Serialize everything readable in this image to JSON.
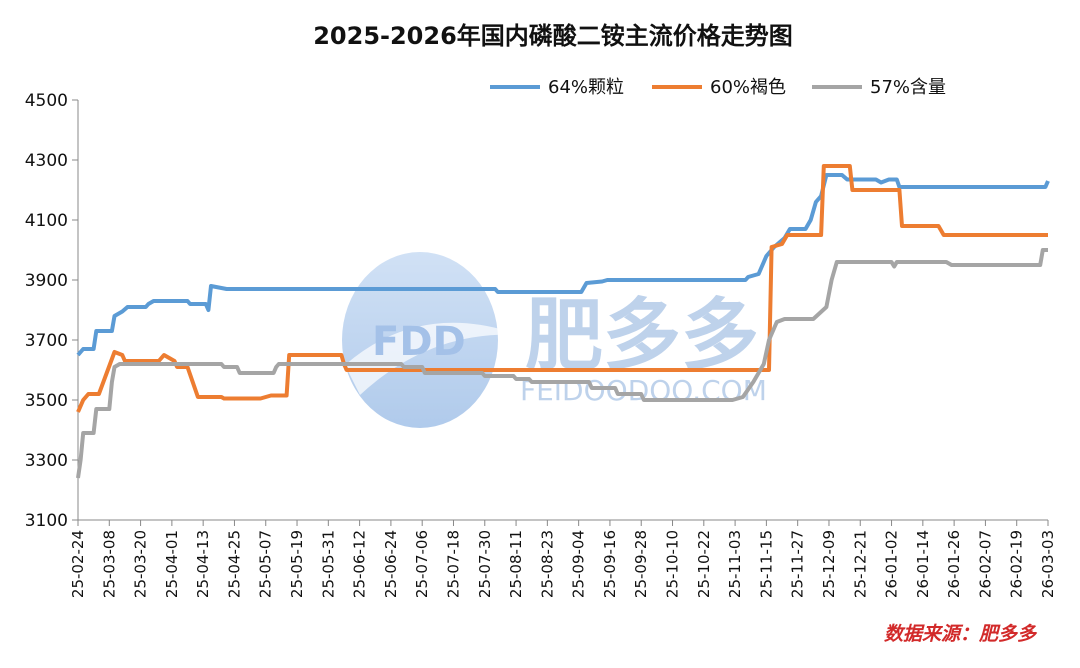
{
  "chart_data": {
    "type": "line",
    "title": "2025-2026年国内磷酸二铵主流价格走势图",
    "source": "数据来源：肥多多",
    "watermark": {
      "logo": "FDD",
      "name": "肥多多",
      "url": "FEIDOODOO.COM"
    },
    "ylim": [
      3100,
      4500
    ],
    "yticks": [
      3100,
      3300,
      3500,
      3700,
      3900,
      4100,
      4300,
      4500
    ],
    "grid": false,
    "legend_position": "top-right",
    "x_start": "2025-02-24",
    "x_end": "2026-03-03",
    "xtick_labels": [
      "25-02-24",
      "25-03-08",
      "25-03-20",
      "25-04-01",
      "25-04-13",
      "25-04-25",
      "25-05-07",
      "25-05-19",
      "25-05-31",
      "25-06-12",
      "25-06-24",
      "25-07-06",
      "25-07-18",
      "25-07-30",
      "25-08-11",
      "25-08-23",
      "25-09-04",
      "25-09-16",
      "25-09-28",
      "25-10-10",
      "25-10-22",
      "25-11-03",
      "25-11-15",
      "25-11-27",
      "25-12-09",
      "25-12-21",
      "26-01-02",
      "26-01-14",
      "26-01-26",
      "26-02-07",
      "26-02-19",
      "26-03-03"
    ],
    "series": [
      {
        "name": "64%颗粒",
        "color": "#5b9bd5",
        "points": [
          [
            "2025-02-24",
            3650
          ],
          [
            "2025-02-26",
            3670
          ],
          [
            "2025-03-02",
            3670
          ],
          [
            "2025-03-03",
            3730
          ],
          [
            "2025-03-09",
            3730
          ],
          [
            "2025-03-10",
            3780
          ],
          [
            "2025-03-13",
            3795
          ],
          [
            "2025-03-15",
            3810
          ],
          [
            "2025-03-22",
            3810
          ],
          [
            "2025-03-23",
            3820
          ],
          [
            "2025-03-25",
            3830
          ],
          [
            "2025-04-07",
            3830
          ],
          [
            "2025-04-08",
            3820
          ],
          [
            "2025-04-14",
            3820
          ],
          [
            "2025-04-15",
            3800
          ],
          [
            "2025-04-16",
            3880
          ],
          [
            "2025-04-22",
            3870
          ],
          [
            "2025-08-03",
            3870
          ],
          [
            "2025-08-04",
            3860
          ],
          [
            "2025-09-05",
            3860
          ],
          [
            "2025-09-07",
            3890
          ],
          [
            "2025-09-13",
            3895
          ],
          [
            "2025-09-15",
            3900
          ],
          [
            "2025-11-07",
            3900
          ],
          [
            "2025-11-08",
            3910
          ],
          [
            "2025-11-12",
            3920
          ],
          [
            "2025-11-15",
            3980
          ],
          [
            "2025-11-18",
            4010
          ],
          [
            "2025-11-22",
            4040
          ],
          [
            "2025-11-24",
            4070
          ],
          [
            "2025-11-30",
            4070
          ],
          [
            "2025-12-02",
            4100
          ],
          [
            "2025-12-04",
            4160
          ],
          [
            "2025-12-06",
            4180
          ],
          [
            "2025-12-08",
            4250
          ],
          [
            "2025-12-14",
            4250
          ],
          [
            "2025-12-16",
            4235
          ],
          [
            "2025-12-27",
            4235
          ],
          [
            "2025-12-29",
            4225
          ],
          [
            "2026-01-01",
            4235
          ],
          [
            "2026-01-04",
            4235
          ],
          [
            "2026-01-05",
            4210
          ],
          [
            "2026-03-02",
            4210
          ],
          [
            "2026-03-03",
            4230
          ]
        ]
      },
      {
        "name": "60%褐色",
        "color": "#ed7d31",
        "points": [
          [
            "2025-02-24",
            3460
          ],
          [
            "2025-02-26",
            3500
          ],
          [
            "2025-02-28",
            3520
          ],
          [
            "2025-03-04",
            3520
          ],
          [
            "2025-03-07",
            3590
          ],
          [
            "2025-03-10",
            3660
          ],
          [
            "2025-03-13",
            3650
          ],
          [
            "2025-03-14",
            3630
          ],
          [
            "2025-03-27",
            3630
          ],
          [
            "2025-03-29",
            3650
          ],
          [
            "2025-04-02",
            3630
          ],
          [
            "2025-04-03",
            3610
          ],
          [
            "2025-04-07",
            3610
          ],
          [
            "2025-04-09",
            3560
          ],
          [
            "2025-04-11",
            3510
          ],
          [
            "2025-04-20",
            3510
          ],
          [
            "2025-04-21",
            3505
          ],
          [
            "2025-05-05",
            3505
          ],
          [
            "2025-05-09",
            3515
          ],
          [
            "2025-05-15",
            3515
          ],
          [
            "2025-05-16",
            3650
          ],
          [
            "2025-06-05",
            3650
          ],
          [
            "2025-06-06",
            3620
          ],
          [
            "2025-06-07",
            3600
          ],
          [
            "2025-11-16",
            3600
          ],
          [
            "2025-11-17",
            4010
          ],
          [
            "2025-11-21",
            4020
          ],
          [
            "2025-11-23",
            4050
          ],
          [
            "2025-12-06",
            4050
          ],
          [
            "2025-12-07",
            4280
          ],
          [
            "2025-12-17",
            4280
          ],
          [
            "2025-12-18",
            4200
          ],
          [
            "2026-01-05",
            4200
          ],
          [
            "2026-01-06",
            4080
          ],
          [
            "2026-01-20",
            4080
          ],
          [
            "2026-01-22",
            4050
          ],
          [
            "2026-03-03",
            4050
          ]
        ]
      },
      {
        "name": "57%含量",
        "color": "#a5a5a5",
        "points": [
          [
            "2025-02-24",
            3240
          ],
          [
            "2025-02-25",
            3300
          ],
          [
            "2025-02-26",
            3390
          ],
          [
            "2025-03-02",
            3390
          ],
          [
            "2025-03-03",
            3470
          ],
          [
            "2025-03-08",
            3470
          ],
          [
            "2025-03-09",
            3560
          ],
          [
            "2025-03-10",
            3610
          ],
          [
            "2025-03-12",
            3620
          ],
          [
            "2025-04-20",
            3620
          ],
          [
            "2025-04-21",
            3610
          ],
          [
            "2025-04-26",
            3610
          ],
          [
            "2025-04-27",
            3590
          ],
          [
            "2025-05-10",
            3590
          ],
          [
            "2025-05-11",
            3610
          ],
          [
            "2025-05-12",
            3620
          ],
          [
            "2025-06-28",
            3620
          ],
          [
            "2025-06-29",
            3610
          ],
          [
            "2025-07-06",
            3610
          ],
          [
            "2025-07-07",
            3590
          ],
          [
            "2025-07-29",
            3590
          ],
          [
            "2025-07-30",
            3580
          ],
          [
            "2025-08-10",
            3580
          ],
          [
            "2025-08-11",
            3570
          ],
          [
            "2025-08-16",
            3570
          ],
          [
            "2025-08-17",
            3560
          ],
          [
            "2025-09-08",
            3560
          ],
          [
            "2025-09-09",
            3540
          ],
          [
            "2025-09-18",
            3540
          ],
          [
            "2025-09-19",
            3520
          ],
          [
            "2025-09-28",
            3520
          ],
          [
            "2025-09-29",
            3500
          ],
          [
            "2025-11-02",
            3500
          ],
          [
            "2025-11-06",
            3510
          ],
          [
            "2025-11-10",
            3560
          ],
          [
            "2025-11-14",
            3620
          ],
          [
            "2025-11-16",
            3700
          ],
          [
            "2025-11-19",
            3760
          ],
          [
            "2025-11-22",
            3770
          ],
          [
            "2025-12-03",
            3770
          ],
          [
            "2025-12-08",
            3810
          ],
          [
            "2025-12-10",
            3900
          ],
          [
            "2025-12-12",
            3960
          ],
          [
            "2026-01-02",
            3960
          ],
          [
            "2026-01-03",
            3945
          ],
          [
            "2026-01-04",
            3960
          ],
          [
            "2026-01-23",
            3960
          ],
          [
            "2026-01-25",
            3950
          ],
          [
            "2026-02-28",
            3950
          ],
          [
            "2026-03-01",
            4000
          ],
          [
            "2026-03-03",
            4000
          ]
        ]
      }
    ]
  }
}
